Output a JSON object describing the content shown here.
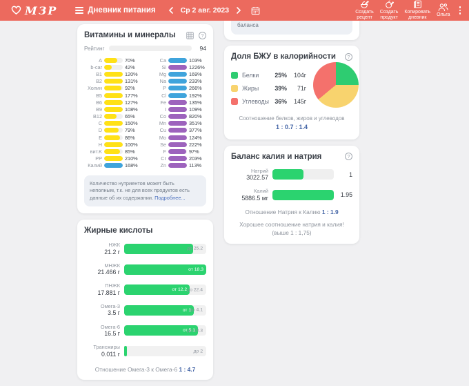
{
  "colors": {
    "yellow": "#ffe116",
    "blue": "#3fa4dc",
    "purple": "#9d63bd",
    "green": "#2bd36f",
    "header": "#ec6a5e"
  },
  "header": {
    "logo_text": "МЗР",
    "menu_label": "Дневник питания",
    "date_label": "Ср 2 авг. 2023",
    "actions": [
      {
        "line1": "Создать",
        "line2": "рецепт"
      },
      {
        "line1": "Создать",
        "line2": "продукт"
      },
      {
        "line1": "Копировать",
        "line2": "дневник"
      }
    ],
    "user_label": "Ольга"
  },
  "truncated_panel": {
    "text": "баланса"
  },
  "vitamins_panel": {
    "title": "Витамины и минералы",
    "rating_label": "Рейтинг",
    "rating_value": "94",
    "rating_percent": 94,
    "left": [
      {
        "label": "A",
        "pct": 70,
        "color": "yellow"
      },
      {
        "label": "b-car",
        "pct": 42,
        "color": "yellow"
      },
      {
        "label": "B1",
        "pct": 120,
        "color": "yellow"
      },
      {
        "label": "B2",
        "pct": 131,
        "color": "yellow"
      },
      {
        "label": "Холин",
        "pct": 92,
        "color": "yellow"
      },
      {
        "label": "B5",
        "pct": 177,
        "color": "yellow"
      },
      {
        "label": "B6",
        "pct": 127,
        "color": "yellow"
      },
      {
        "label": "B9",
        "pct": 108,
        "color": "yellow"
      },
      {
        "label": "B12",
        "pct": 65,
        "color": "yellow"
      },
      {
        "label": "C",
        "pct": 150,
        "color": "yellow"
      },
      {
        "label": "D",
        "pct": 79,
        "color": "yellow"
      },
      {
        "label": "E",
        "pct": 86,
        "color": "yellow"
      },
      {
        "label": "H",
        "pct": 100,
        "color": "yellow"
      },
      {
        "label": "вит.K",
        "pct": 85,
        "color": "yellow"
      },
      {
        "label": "PP",
        "pct": 210,
        "color": "yellow"
      },
      {
        "label": "Калий",
        "pct": 168,
        "color": "blue"
      }
    ],
    "right": [
      {
        "label": "Ca",
        "pct": 103,
        "color": "blue"
      },
      {
        "label": "Si",
        "pct": 1226,
        "color": "purple"
      },
      {
        "label": "Mg",
        "pct": 169,
        "color": "blue"
      },
      {
        "label": "Na",
        "pct": 233,
        "color": "blue"
      },
      {
        "label": "P",
        "pct": 266,
        "color": "blue"
      },
      {
        "label": "Cl",
        "pct": 192,
        "color": "blue"
      },
      {
        "label": "Fe",
        "pct": 135,
        "color": "purple"
      },
      {
        "label": "I",
        "pct": 109,
        "color": "purple"
      },
      {
        "label": "Co",
        "pct": 820,
        "color": "purple"
      },
      {
        "label": "Mn",
        "pct": 351,
        "color": "purple"
      },
      {
        "label": "Cu",
        "pct": 377,
        "color": "purple"
      },
      {
        "label": "Mo",
        "pct": 124,
        "color": "purple"
      },
      {
        "label": "Se",
        "pct": 222,
        "color": "purple"
      },
      {
        "label": "F",
        "pct": 97,
        "color": "purple"
      },
      {
        "label": "Cr",
        "pct": 203,
        "color": "purple"
      },
      {
        "label": "Zn",
        "pct": 113,
        "color": "purple"
      }
    ],
    "note": "Количество нутриентов может быть неполным, т.к. не для всех продуктов есть данные об их содержании.",
    "note_link": "Подробнее..."
  },
  "fatty_panel": {
    "title": "Жирные кислоты",
    "rows": [
      {
        "name": "НЖК",
        "amount": "21.2 г",
        "fill_pct": 84,
        "inner_label": "",
        "outer_label": "до 25.2"
      },
      {
        "name": "МНЖК",
        "amount": "21.466 г",
        "fill_pct": 100,
        "inner_label": "от 18.3",
        "outer_label": ""
      },
      {
        "name": "ПНЖК",
        "amount": "17.881 г",
        "fill_pct": 80,
        "inner_label": "от 12.2",
        "outer_label": "до 22.4"
      },
      {
        "name": "Омега-3",
        "amount": "3.5 г",
        "fill_pct": 85,
        "inner_label": "от 1",
        "outer_label": "до 4.1"
      },
      {
        "name": "Омега-6",
        "amount": "16.5 г",
        "fill_pct": 90,
        "inner_label": "от 5.1",
        "outer_label": "до 18.3"
      },
      {
        "name": "Трансжиры",
        "amount": "0.011 г",
        "fill_pct": 1,
        "inner_label": "",
        "outer_label": "до 2"
      }
    ],
    "footer_text": "Отношение Омега-3 к Омега-6",
    "footer_ratio": "1 : 4.7"
  },
  "bju_panel": {
    "title": "Доля БЖУ в калорийности",
    "legend": [
      {
        "name": "Белки",
        "percent": "25%",
        "grams": "104г",
        "color": "#2ecc71"
      },
      {
        "name": "Жиры",
        "percent": "39%",
        "grams": "71г",
        "color": "#f8d36e"
      },
      {
        "name": "Углеводы",
        "percent": "36%",
        "grams": "145г",
        "color": "#f4716c"
      }
    ],
    "footer_text": "Соотношение белков, жиров и углеводов",
    "footer_ratio": "1 : 0.7 : 1.4"
  },
  "sodium_panel": {
    "title": "Баланс калия и натрия",
    "rows": [
      {
        "name": "Натрий",
        "amount": "3022.57",
        "fill_pct": 51,
        "value": "1"
      },
      {
        "name": "Калий",
        "amount": "5886.5 мг",
        "fill_pct": 100,
        "value": "1.95"
      }
    ],
    "ratio_text": "Отношение Натрия к Калию",
    "ratio": "1 : 1.9",
    "comment": "Хорошее соотношение натрия и калия! (выше 1 : 1,75)"
  },
  "chart_data": [
    {
      "type": "pie",
      "title": "Доля БЖУ в калорийности",
      "labels": [
        "Белки",
        "Жиры",
        "Углеводы"
      ],
      "values": [
        25,
        39,
        36
      ],
      "grams": [
        104,
        71,
        145
      ],
      "colors": [
        "#2ecc71",
        "#f8d36e",
        "#f4716c"
      ],
      "legend_position": "left",
      "ratio": "1 : 0.7 : 1.4"
    },
    {
      "type": "bar",
      "title": "Баланс калия и натрия",
      "categories": [
        "Натрий",
        "Калий"
      ],
      "values": [
        3022.57,
        5886.5
      ],
      "normalized": [
        1,
        1.95
      ],
      "ylabel": "мг",
      "ratio": "1 : 1.9"
    }
  ]
}
